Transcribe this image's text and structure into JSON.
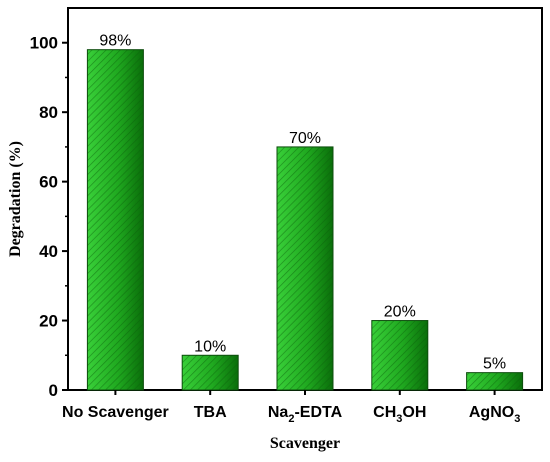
{
  "chart_data": {
    "type": "bar",
    "xlabel": "Scavenger",
    "ylabel": "Degradation (%)",
    "ylim": [
      0,
      110
    ],
    "yticks": [
      0,
      20,
      40,
      60,
      80,
      100
    ],
    "categories": [
      "No Scavenger",
      "TBA",
      "Na2-EDTA",
      "CH3OH",
      "AgNO3"
    ],
    "category_labels": [
      [
        {
          "t": "No Scavenger",
          "sub": false
        }
      ],
      [
        {
          "t": "TBA",
          "sub": false
        }
      ],
      [
        {
          "t": "Na",
          "sub": false
        },
        {
          "t": "2",
          "sub": true
        },
        {
          "t": "-EDTA",
          "sub": false
        }
      ],
      [
        {
          "t": "CH",
          "sub": false
        },
        {
          "t": "3",
          "sub": true
        },
        {
          "t": "OH",
          "sub": false
        }
      ],
      [
        {
          "t": "AgNO",
          "sub": false
        },
        {
          "t": "3",
          "sub": true
        }
      ]
    ],
    "values": [
      98,
      10,
      70,
      20,
      5
    ],
    "data_labels": [
      "98%",
      "10%",
      "70%",
      "20%",
      "5%"
    ],
    "bar_color": "#22b422",
    "bar_color_dark": "#0a6e0a",
    "legend": "none",
    "grid": false
  }
}
